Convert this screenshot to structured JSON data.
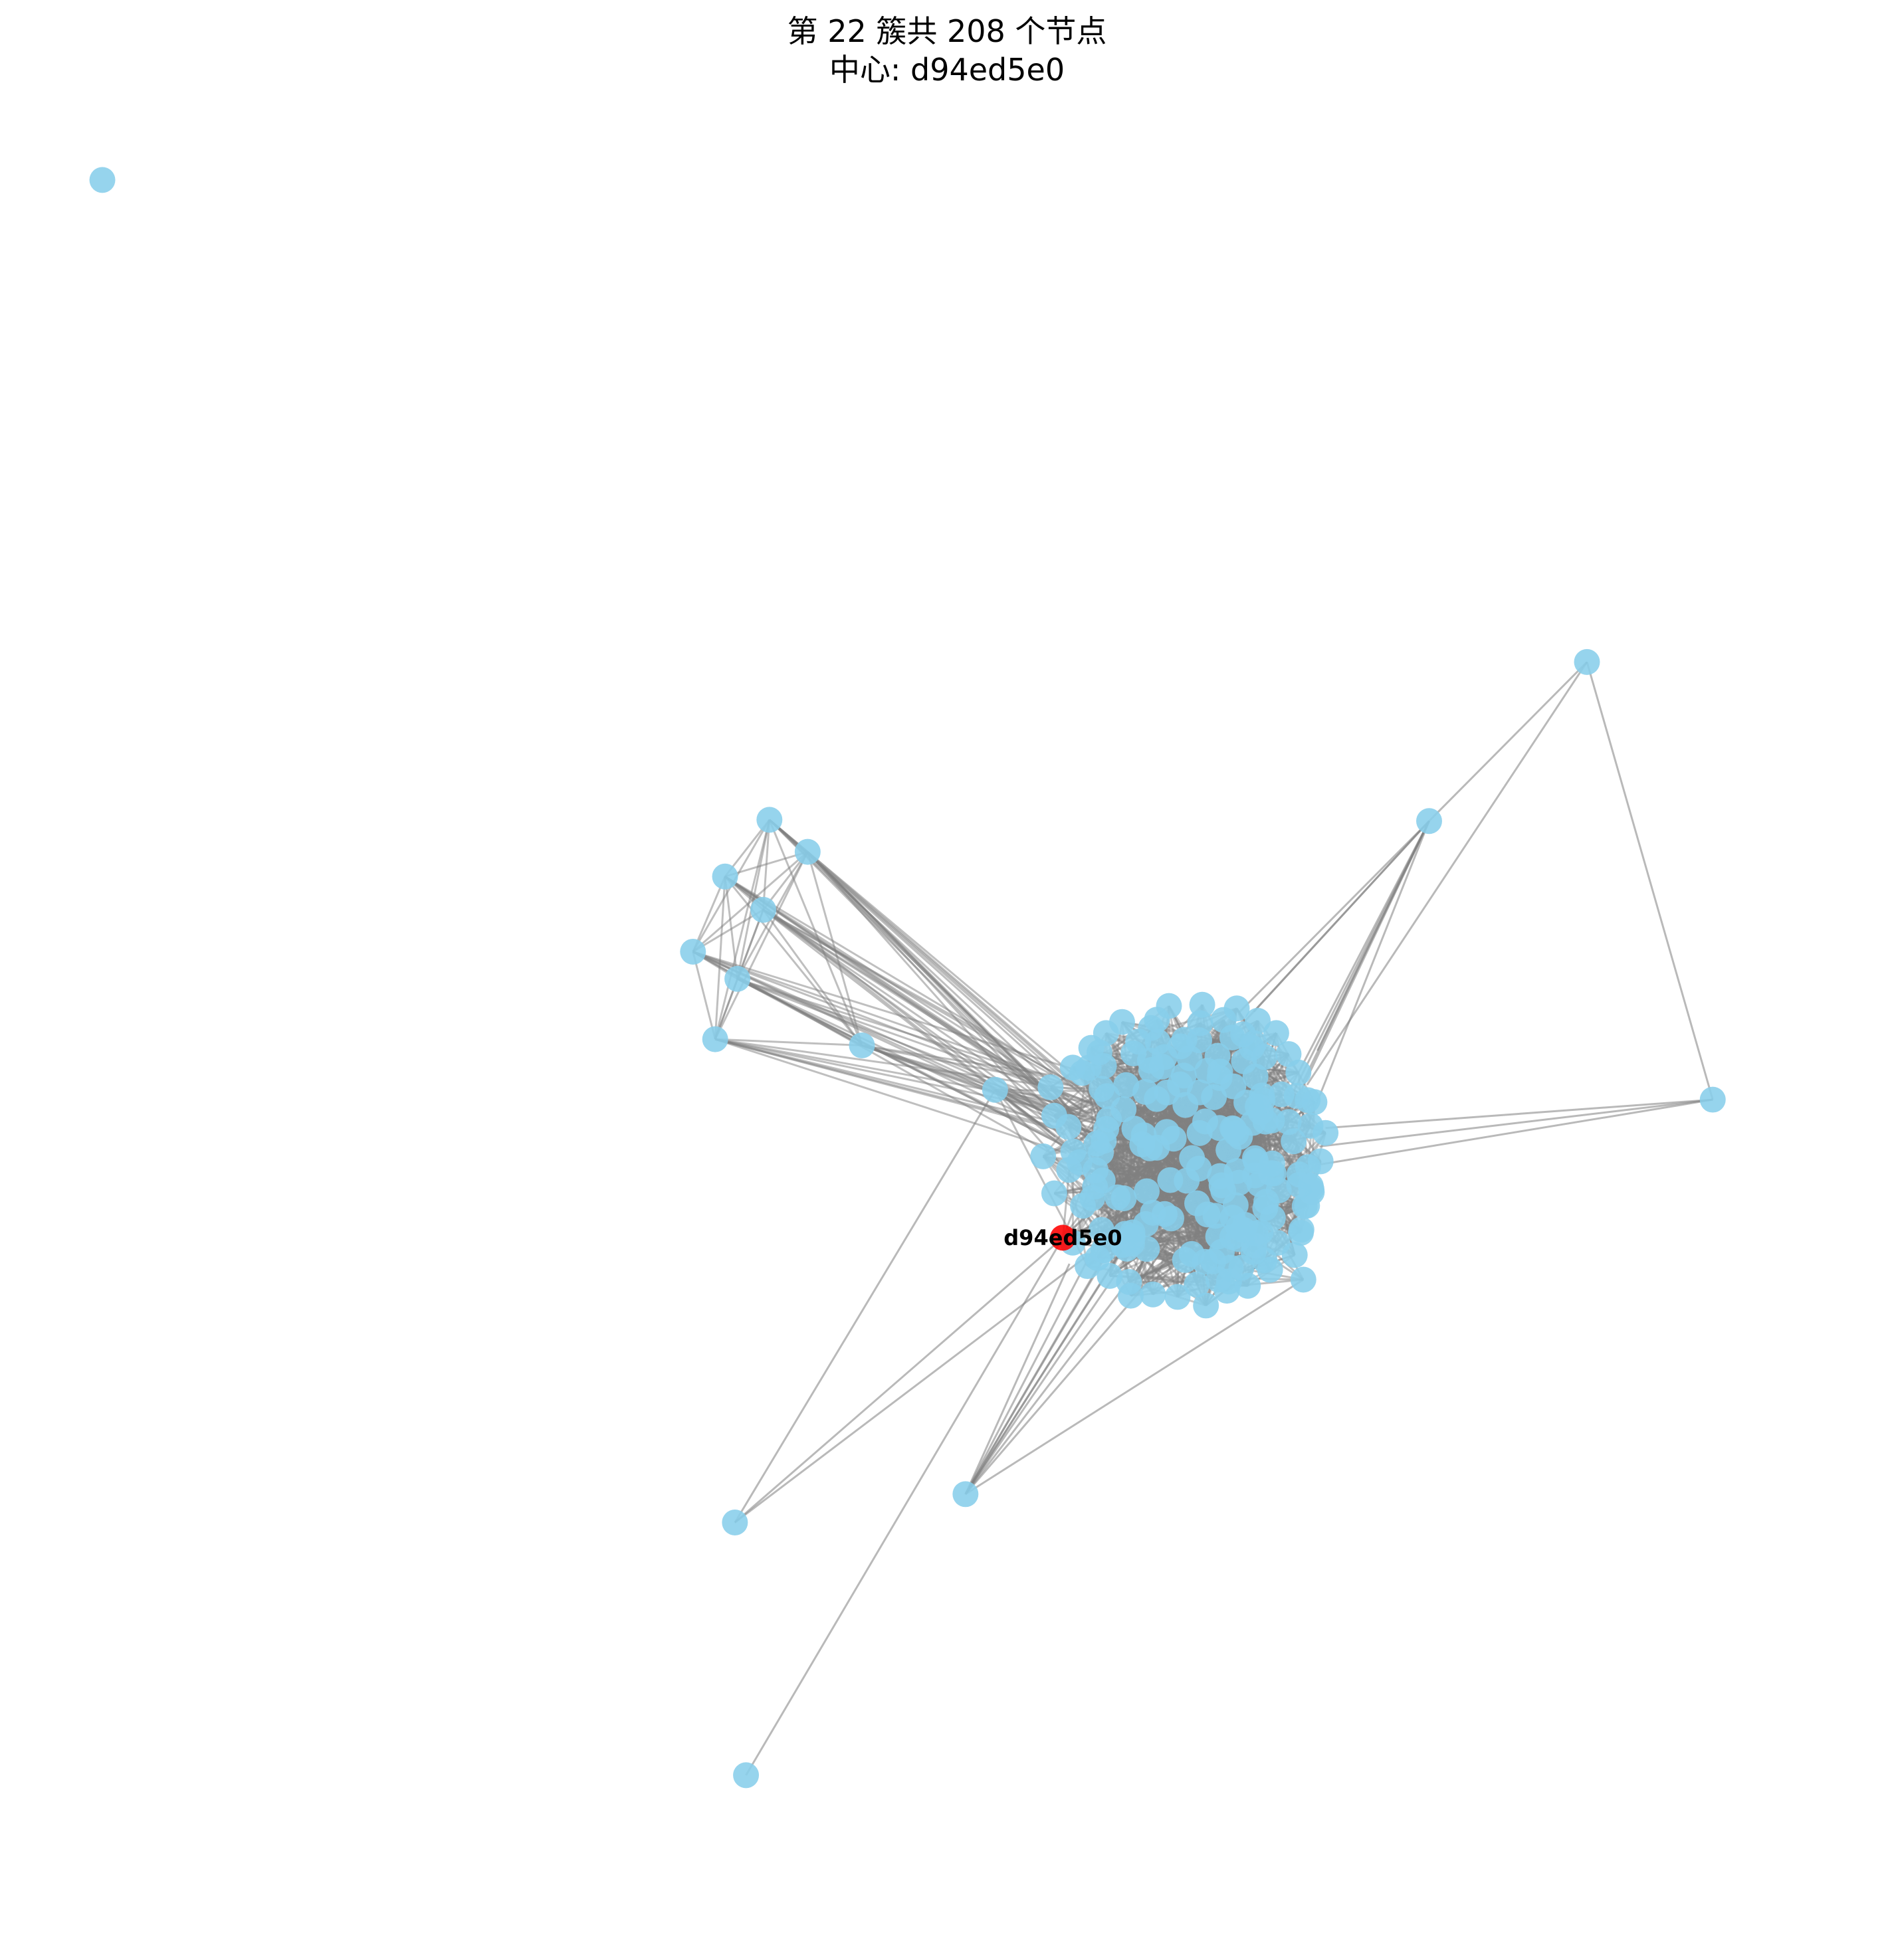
{
  "title": {
    "line1": "第 22 簇共 208 个节点",
    "line2": "中心: d94ed5e0"
  },
  "colors": {
    "node": "#87ceeb",
    "center_node": "#ff0000",
    "edge": "#808080"
  },
  "center_node_label": "d94ed5e0",
  "cluster": {
    "node_count": 208
  }
}
